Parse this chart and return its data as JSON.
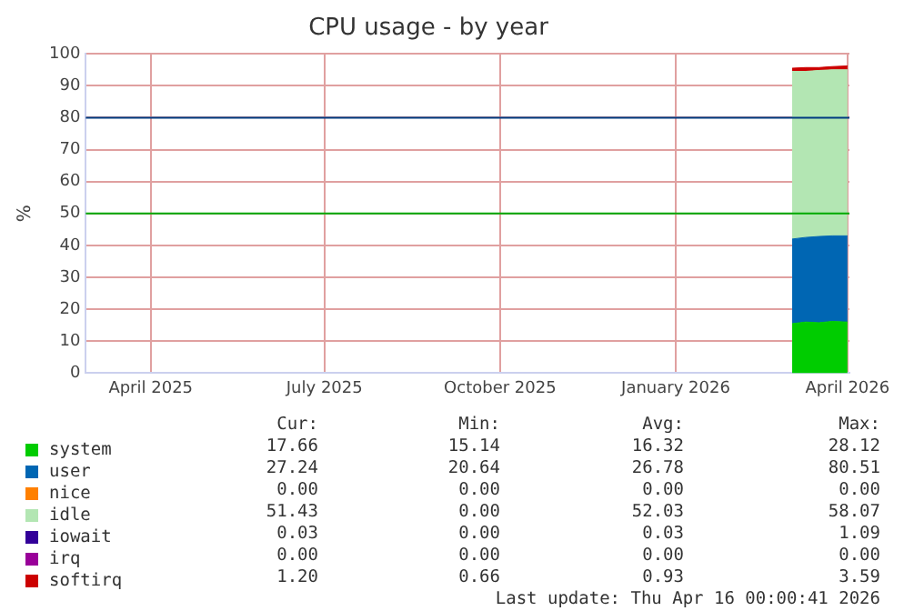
{
  "chart_data": {
    "type": "area",
    "title": "CPU usage - by year",
    "ylabel": "%",
    "stacked": true,
    "grid": true,
    "legend": "bottom",
    "x": [
      "2026-03-17",
      "2026-03-24",
      "2026-03-31",
      "2026-04-07",
      "2026-04-15"
    ],
    "xlim": [
      "2025-03-12",
      "2026-04-16"
    ],
    "xticks": [
      {
        "value": "2025-04-15",
        "label": "April 2025"
      },
      {
        "value": "2025-07-15",
        "label": "July 2025"
      },
      {
        "value": "2025-10-15",
        "label": "October 2025"
      },
      {
        "value": "2026-01-15",
        "label": "January 2026"
      },
      {
        "value": "2026-04-15",
        "label": "April 2026"
      }
    ],
    "ylim": [
      0,
      100
    ],
    "yticks": [
      0,
      10,
      20,
      30,
      40,
      50,
      60,
      70,
      80,
      90,
      100
    ],
    "series": [
      {
        "name": "system",
        "color": "#00cc00",
        "values": [
          15.5,
          16,
          15.8,
          16.2,
          16
        ]
      },
      {
        "name": "user",
        "color": "#0066b3",
        "values": [
          26.5,
          26.5,
          27,
          26.8,
          27
        ]
      },
      {
        "name": "nice",
        "color": "#ff8000",
        "values": [
          null,
          null,
          null,
          null,
          null
        ]
      },
      {
        "name": "idle",
        "color": "#b3e6b3",
        "values": [
          52.5,
          52,
          52,
          52,
          52
        ]
      },
      {
        "name": "iowait",
        "color": "#330099",
        "values": [
          null,
          null,
          null,
          null,
          null
        ]
      },
      {
        "name": "irq",
        "color": "#990099",
        "values": [
          null,
          null,
          null,
          null,
          null
        ]
      },
      {
        "name": "softirq",
        "color": "#cc0000",
        "values": [
          1,
          1.2,
          0.9,
          1,
          1.2
        ]
      }
    ],
    "ref_lines": [
      {
        "axis": "y",
        "value": 80,
        "color": "#003a80"
      },
      {
        "axis": "y",
        "value": 50,
        "color": "#00aa00"
      }
    ],
    "annotations": [
      "Cur:",
      "Min:",
      "Avg:",
      "Max:",
      "17.66",
      "15.14",
      "16.32",
      "28.12",
      "27.24",
      "20.64",
      "26.78",
      "80.51",
      "0.00",
      "0.00",
      "0.00",
      "0.00",
      "51.43",
      "0.00",
      "52.03",
      "58.07",
      "0.03",
      "0.00",
      "0.03",
      "1.09",
      "0.00",
      "0.00",
      "0.00",
      "0.00",
      "1.20",
      "0.66",
      "0.93",
      "3.59",
      "Last update: Thu Apr 16 00:00:41 2026"
    ]
  }
}
